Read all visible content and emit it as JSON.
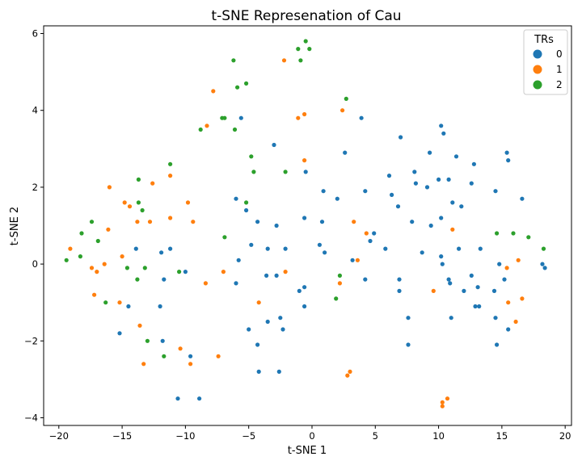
{
  "chart_data": {
    "type": "scatter",
    "title": "t-SNE Represenation of Cau",
    "xlabel": "t-SNE 1",
    "ylabel": "t-SNE 2",
    "xlim": [
      -21.2,
      20.5
    ],
    "ylim": [
      -4.2,
      6.2
    ],
    "xticks": [
      -20,
      -15,
      -10,
      -5,
      0,
      5,
      10,
      15,
      20
    ],
    "yticks": [
      -4,
      -2,
      0,
      2,
      4,
      6
    ],
    "grid": false,
    "legend": {
      "title": "TRs",
      "position": "top-right"
    },
    "series": [
      {
        "name": "0",
        "color": "#1f77b4",
        "points": [
          [
            -5.6,
            3.8
          ],
          [
            -6.0,
            1.7
          ],
          [
            -5.2,
            1.4
          ],
          [
            -3.0,
            3.1
          ],
          [
            -4.3,
            1.1
          ],
          [
            -4.8,
            0.5
          ],
          [
            -5.8,
            0.1
          ],
          [
            -6.0,
            -0.5
          ],
          [
            -3.5,
            0.4
          ],
          [
            -3.6,
            -0.3
          ],
          [
            -2.8,
            -0.3
          ],
          [
            -2.8,
            1.0
          ],
          [
            -2.1,
            0.4
          ],
          [
            -1.0,
            -0.7
          ],
          [
            -0.6,
            -0.6
          ],
          [
            -0.6,
            1.2
          ],
          [
            -0.5,
            2.4
          ],
          [
            0.8,
            1.1
          ],
          [
            0.6,
            0.5
          ],
          [
            1.0,
            0.3
          ],
          [
            0.9,
            1.9
          ],
          [
            2.0,
            1.7
          ],
          [
            2.6,
            2.9
          ],
          [
            3.9,
            3.8
          ],
          [
            4.2,
            1.9
          ],
          [
            3.2,
            0.1
          ],
          [
            4.6,
            0.6
          ],
          [
            4.2,
            -0.4
          ],
          [
            -5.0,
            -1.7
          ],
          [
            -4.3,
            -2.1
          ],
          [
            -3.5,
            -1.5
          ],
          [
            -2.5,
            -1.4
          ],
          [
            -2.3,
            -1.7
          ],
          [
            -2.6,
            -2.8
          ],
          [
            -4.2,
            -2.8
          ],
          [
            -0.6,
            -1.1
          ],
          [
            -10.6,
            -3.5
          ],
          [
            -8.9,
            -3.5
          ],
          [
            -10.0,
            -0.2
          ],
          [
            -11.2,
            0.4
          ],
          [
            -11.9,
            0.3
          ],
          [
            -11.7,
            -0.4
          ],
          [
            -12.0,
            -1.1
          ],
          [
            -11.8,
            -2.0
          ],
          [
            -9.6,
            -2.4
          ],
          [
            -13.9,
            0.4
          ],
          [
            -14.5,
            -1.1
          ],
          [
            -15.2,
            -1.8
          ],
          [
            4.9,
            0.8
          ],
          [
            5.8,
            0.4
          ],
          [
            6.1,
            2.3
          ],
          [
            6.3,
            1.8
          ],
          [
            6.8,
            1.5
          ],
          [
            7.0,
            3.3
          ],
          [
            7.9,
            1.1
          ],
          [
            8.1,
            2.4
          ],
          [
            8.2,
            2.1
          ],
          [
            8.7,
            0.3
          ],
          [
            9.1,
            2.0
          ],
          [
            9.3,
            2.9
          ],
          [
            9.4,
            1.0
          ],
          [
            10.0,
            2.2
          ],
          [
            10.2,
            3.6
          ],
          [
            10.4,
            3.4
          ],
          [
            10.2,
            1.2
          ],
          [
            10.8,
            2.2
          ],
          [
            11.1,
            1.6
          ],
          [
            11.4,
            2.8
          ],
          [
            11.8,
            1.5
          ],
          [
            11.6,
            0.4
          ],
          [
            12.0,
            -0.7
          ],
          [
            12.6,
            2.1
          ],
          [
            12.8,
            2.6
          ],
          [
            12.6,
            -0.3
          ],
          [
            12.9,
            -1.1
          ],
          [
            13.2,
            -1.1
          ],
          [
            13.3,
            0.4
          ],
          [
            13.1,
            -0.6
          ],
          [
            14.5,
            1.9
          ],
          [
            14.4,
            -0.7
          ],
          [
            14.6,
            -2.1
          ],
          [
            14.8,
            0.0
          ],
          [
            15.2,
            -0.4
          ],
          [
            15.4,
            2.9
          ],
          [
            15.5,
            2.7
          ],
          [
            15.5,
            -1.7
          ],
          [
            16.6,
            1.7
          ],
          [
            18.2,
            0.0
          ],
          [
            18.4,
            -0.1
          ],
          [
            6.9,
            -0.4
          ],
          [
            6.9,
            -0.7
          ],
          [
            7.6,
            -1.4
          ],
          [
            7.6,
            -2.1
          ],
          [
            10.2,
            0.2
          ],
          [
            10.3,
            0.0
          ],
          [
            10.9,
            -0.5
          ],
          [
            11.0,
            -1.4
          ],
          [
            14.5,
            -1.4
          ],
          [
            10.8,
            -0.4
          ]
        ]
      },
      {
        "name": "1",
        "color": "#ff7f0e",
        "points": [
          [
            -7.8,
            4.5
          ],
          [
            -8.3,
            3.6
          ],
          [
            -2.2,
            5.3
          ],
          [
            -1.1,
            3.8
          ],
          [
            -0.6,
            3.9
          ],
          [
            -0.6,
            2.7
          ],
          [
            2.4,
            4.0
          ],
          [
            3.3,
            1.1
          ],
          [
            3.6,
            0.1
          ],
          [
            4.3,
            0.8
          ],
          [
            -11.2,
            2.3
          ],
          [
            -12.6,
            2.1
          ],
          [
            -9.8,
            1.6
          ],
          [
            -9.4,
            1.1
          ],
          [
            -11.2,
            1.2
          ],
          [
            -12.8,
            1.1
          ],
          [
            -14.4,
            1.5
          ],
          [
            -14.8,
            1.6
          ],
          [
            -16.0,
            2.0
          ],
          [
            -13.8,
            1.1
          ],
          [
            -16.1,
            0.9
          ],
          [
            -16.4,
            0.0
          ],
          [
            -17.0,
            -0.2
          ],
          [
            -17.4,
            -0.1
          ],
          [
            -19.1,
            0.4
          ],
          [
            -15.0,
            0.2
          ],
          [
            -17.2,
            -0.8
          ],
          [
            -15.2,
            -1.0
          ],
          [
            -13.6,
            -1.6
          ],
          [
            -13.3,
            -2.6
          ],
          [
            -10.4,
            -2.2
          ],
          [
            -9.6,
            -2.6
          ],
          [
            -7.4,
            -2.4
          ],
          [
            -8.4,
            -0.5
          ],
          [
            -7.0,
            -0.2
          ],
          [
            -4.2,
            -1.0
          ],
          [
            -2.1,
            -0.2
          ],
          [
            2.2,
            -0.5
          ],
          [
            2.8,
            -2.9
          ],
          [
            3.0,
            -2.8
          ],
          [
            10.3,
            -3.6
          ],
          [
            10.3,
            -3.7
          ],
          [
            10.7,
            -3.5
          ],
          [
            9.6,
            -0.7
          ],
          [
            11.1,
            0.9
          ],
          [
            15.4,
            -0.1
          ],
          [
            15.5,
            -1.0
          ],
          [
            16.1,
            -1.5
          ],
          [
            16.3,
            0.1
          ],
          [
            16.6,
            -0.9
          ]
        ]
      },
      {
        "name": "2",
        "color": "#2ca02c",
        "points": [
          [
            -6.2,
            5.3
          ],
          [
            -5.9,
            4.6
          ],
          [
            -5.2,
            4.7
          ],
          [
            -7.1,
            3.8
          ],
          [
            -6.9,
            3.8
          ],
          [
            -8.8,
            3.5
          ],
          [
            -6.1,
            3.5
          ],
          [
            -4.8,
            2.8
          ],
          [
            -4.6,
            2.4
          ],
          [
            -2.1,
            2.4
          ],
          [
            -5.2,
            1.6
          ],
          [
            -1.1,
            5.6
          ],
          [
            -0.9,
            5.3
          ],
          [
            -0.5,
            5.8
          ],
          [
            -0.2,
            5.6
          ],
          [
            2.7,
            4.3
          ],
          [
            -11.2,
            2.6
          ],
          [
            -13.7,
            2.2
          ],
          [
            -13.7,
            1.6
          ],
          [
            -13.4,
            1.4
          ],
          [
            -17.4,
            1.1
          ],
          [
            -18.2,
            0.8
          ],
          [
            -16.9,
            0.6
          ],
          [
            -19.4,
            0.1
          ],
          [
            -18.3,
            0.2
          ],
          [
            -14.6,
            -0.1
          ],
          [
            -13.2,
            -0.1
          ],
          [
            -10.5,
            -0.2
          ],
          [
            -13.8,
            -0.4
          ],
          [
            -16.3,
            -1.0
          ],
          [
            -13.0,
            -2.0
          ],
          [
            -11.7,
            -2.4
          ],
          [
            -6.9,
            0.7
          ],
          [
            1.9,
            -0.9
          ],
          [
            2.2,
            -0.3
          ],
          [
            14.6,
            0.8
          ],
          [
            15.9,
            0.8
          ],
          [
            17.1,
            0.7
          ],
          [
            18.3,
            0.4
          ]
        ]
      }
    ]
  }
}
